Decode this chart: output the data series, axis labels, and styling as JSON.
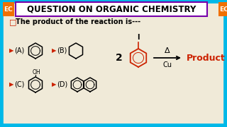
{
  "bg_color": "#f0ead8",
  "border_color": "#00b8e8",
  "border_width": 7,
  "header_text": "QUESTION ON ORGANIC CHEMISTRY",
  "header_bg": "white",
  "header_border": "#7700aa",
  "ec_bg": "#f07000",
  "ec_text": "EC",
  "question_text": "The product of the reaction is---",
  "arrow_color": "#cc2200",
  "options": [
    "(A)",
    "(B)",
    "(C)",
    "(D)"
  ],
  "reaction_coeff": "2",
  "reaction_above": "Δ",
  "reaction_below": "Cu",
  "product_label": "Product",
  "product_color": "#cc2200",
  "ring_color": "#000000",
  "iodo_ring_color": "#cc2200",
  "title_fontsize": 8.5,
  "body_fontsize": 7.0,
  "option_fontsize": 7.0,
  "chevron": "▶"
}
